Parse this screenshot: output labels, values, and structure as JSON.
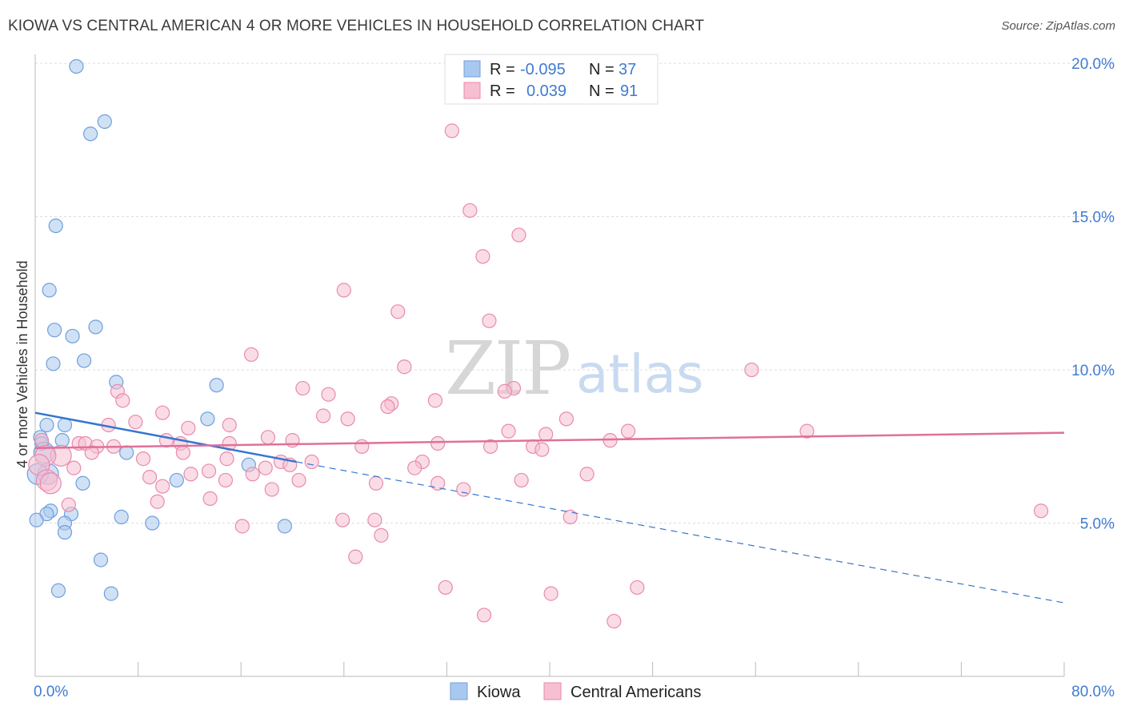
{
  "title": "KIOWA VS CENTRAL AMERICAN 4 OR MORE VEHICLES IN HOUSEHOLD CORRELATION CHART",
  "source": "Source: ZipAtlas.com",
  "watermark": {
    "zip": "ZIP",
    "atlas": "atlas"
  },
  "chart_data": {
    "type": "scatter",
    "ylabel": "4 or more Vehicles in Household",
    "xlim": [
      0,
      80
    ],
    "ylim": [
      0,
      20.5
    ],
    "x_tick_labels": [
      "0.0%",
      "80.0%"
    ],
    "y_ticks": [
      5,
      10,
      15,
      20
    ],
    "y_tick_labels": [
      "5.0%",
      "10.0%",
      "15.0%",
      "20.0%"
    ],
    "grid": true,
    "legend_position": "top-center",
    "stats": [
      {
        "r_label": "R =",
        "r": "-0.095",
        "n_label": "N =",
        "n": "37"
      },
      {
        "r_label": "R =",
        "r": "0.039",
        "n_label": "N =",
        "n": "91"
      }
    ],
    "series": [
      {
        "name": "Kiowa",
        "color": "#a9c8ef",
        "stroke": "#6f9fdc",
        "line_color": "#3576cf",
        "trend": {
          "x": [
            0,
            20.3
          ],
          "y": [
            8.6,
            7.0
          ],
          "x_dashed_end": 80,
          "y_dashed_end": 2.4
        },
        "points": [
          [
            3.2,
            19.9
          ],
          [
            5.4,
            18.1
          ],
          [
            4.3,
            17.7
          ],
          [
            1.6,
            14.7
          ],
          [
            1.1,
            12.6
          ],
          [
            1.5,
            11.3
          ],
          [
            4.7,
            11.4
          ],
          [
            2.9,
            11.1
          ],
          [
            1.4,
            10.2
          ],
          [
            3.8,
            10.3
          ],
          [
            6.3,
            9.6
          ],
          [
            14.1,
            9.5
          ],
          [
            0.9,
            8.2
          ],
          [
            13.4,
            8.4
          ],
          [
            2.3,
            8.2
          ],
          [
            0.4,
            7.8
          ],
          [
            0.5,
            7.6
          ],
          [
            2.1,
            7.7
          ],
          [
            0.7,
            7.3
          ],
          [
            7.1,
            7.3
          ],
          [
            16.6,
            6.9
          ],
          [
            1.0,
            6.6
          ],
          [
            0.2,
            6.6
          ],
          [
            3.7,
            6.3
          ],
          [
            11.0,
            6.4
          ],
          [
            1.2,
            5.4
          ],
          [
            0.9,
            5.3
          ],
          [
            2.8,
            5.3
          ],
          [
            6.7,
            5.2
          ],
          [
            0.1,
            5.1
          ],
          [
            2.3,
            5.0
          ],
          [
            9.1,
            5.0
          ],
          [
            19.4,
            4.9
          ],
          [
            2.3,
            4.7
          ],
          [
            5.1,
            3.8
          ],
          [
            1.8,
            2.8
          ],
          [
            5.9,
            2.7
          ]
        ]
      },
      {
        "name": "Central Americans",
        "color": "#f6bfd2",
        "stroke": "#e98aac",
        "line_color": "#e0709a",
        "trend": {
          "x": [
            0,
            80
          ],
          "y": [
            7.45,
            7.95
          ]
        },
        "points": [
          [
            32.4,
            17.8
          ],
          [
            33.8,
            15.2
          ],
          [
            37.6,
            14.4
          ],
          [
            34.8,
            13.7
          ],
          [
            24.0,
            12.6
          ],
          [
            28.2,
            11.9
          ],
          [
            35.3,
            11.6
          ],
          [
            16.8,
            10.5
          ],
          [
            28.7,
            10.1
          ],
          [
            55.7,
            10.0
          ],
          [
            20.8,
            9.4
          ],
          [
            37.2,
            9.4
          ],
          [
            36.5,
            9.3
          ],
          [
            6.4,
            9.3
          ],
          [
            22.8,
            9.2
          ],
          [
            6.8,
            9.0
          ],
          [
            31.1,
            9.0
          ],
          [
            27.7,
            8.9
          ],
          [
            27.4,
            8.8
          ],
          [
            9.9,
            8.6
          ],
          [
            22.4,
            8.5
          ],
          [
            41.3,
            8.4
          ],
          [
            24.3,
            8.4
          ],
          [
            7.8,
            8.3
          ],
          [
            15.1,
            8.2
          ],
          [
            5.7,
            8.2
          ],
          [
            11.9,
            8.1
          ],
          [
            46.1,
            8.0
          ],
          [
            60.0,
            8.0
          ],
          [
            36.8,
            8.0
          ],
          [
            39.7,
            7.9
          ],
          [
            18.1,
            7.8
          ],
          [
            0.5,
            7.7
          ],
          [
            10.2,
            7.7
          ],
          [
            11.3,
            7.6
          ],
          [
            20.0,
            7.7
          ],
          [
            44.7,
            7.7
          ],
          [
            31.3,
            7.6
          ],
          [
            15.1,
            7.6
          ],
          [
            3.4,
            7.6
          ],
          [
            3.9,
            7.6
          ],
          [
            4.8,
            7.5
          ],
          [
            25.4,
            7.5
          ],
          [
            35.4,
            7.5
          ],
          [
            38.7,
            7.5
          ],
          [
            39.4,
            7.4
          ],
          [
            2.0,
            7.2
          ],
          [
            0.8,
            7.2
          ],
          [
            4.4,
            7.3
          ],
          [
            8.4,
            7.1
          ],
          [
            14.9,
            7.1
          ],
          [
            19.1,
            7.0
          ],
          [
            30.1,
            7.0
          ],
          [
            21.5,
            7.0
          ],
          [
            19.8,
            6.9
          ],
          [
            0.3,
            6.9
          ],
          [
            29.5,
            6.8
          ],
          [
            3.0,
            6.8
          ],
          [
            13.5,
            6.7
          ],
          [
            16.9,
            6.6
          ],
          [
            42.9,
            6.6
          ],
          [
            12.1,
            6.6
          ],
          [
            8.9,
            6.5
          ],
          [
            14.8,
            6.4
          ],
          [
            0.9,
            6.4
          ],
          [
            37.8,
            6.4
          ],
          [
            20.5,
            6.4
          ],
          [
            26.5,
            6.3
          ],
          [
            31.3,
            6.3
          ],
          [
            1.2,
            6.3
          ],
          [
            9.9,
            6.2
          ],
          [
            18.4,
            6.1
          ],
          [
            33.3,
            6.1
          ],
          [
            13.6,
            5.8
          ],
          [
            9.5,
            5.7
          ],
          [
            2.6,
            5.6
          ],
          [
            78.2,
            5.4
          ],
          [
            41.6,
            5.2
          ],
          [
            23.9,
            5.1
          ],
          [
            26.4,
            5.1
          ],
          [
            16.1,
            4.9
          ],
          [
            26.9,
            4.6
          ],
          [
            24.9,
            3.9
          ],
          [
            46.8,
            2.9
          ],
          [
            31.9,
            2.9
          ],
          [
            40.1,
            2.7
          ],
          [
            34.9,
            2.0
          ],
          [
            45.0,
            1.8
          ],
          [
            17.9,
            6.8
          ],
          [
            6.1,
            7.5
          ],
          [
            11.5,
            7.3
          ]
        ]
      }
    ]
  }
}
